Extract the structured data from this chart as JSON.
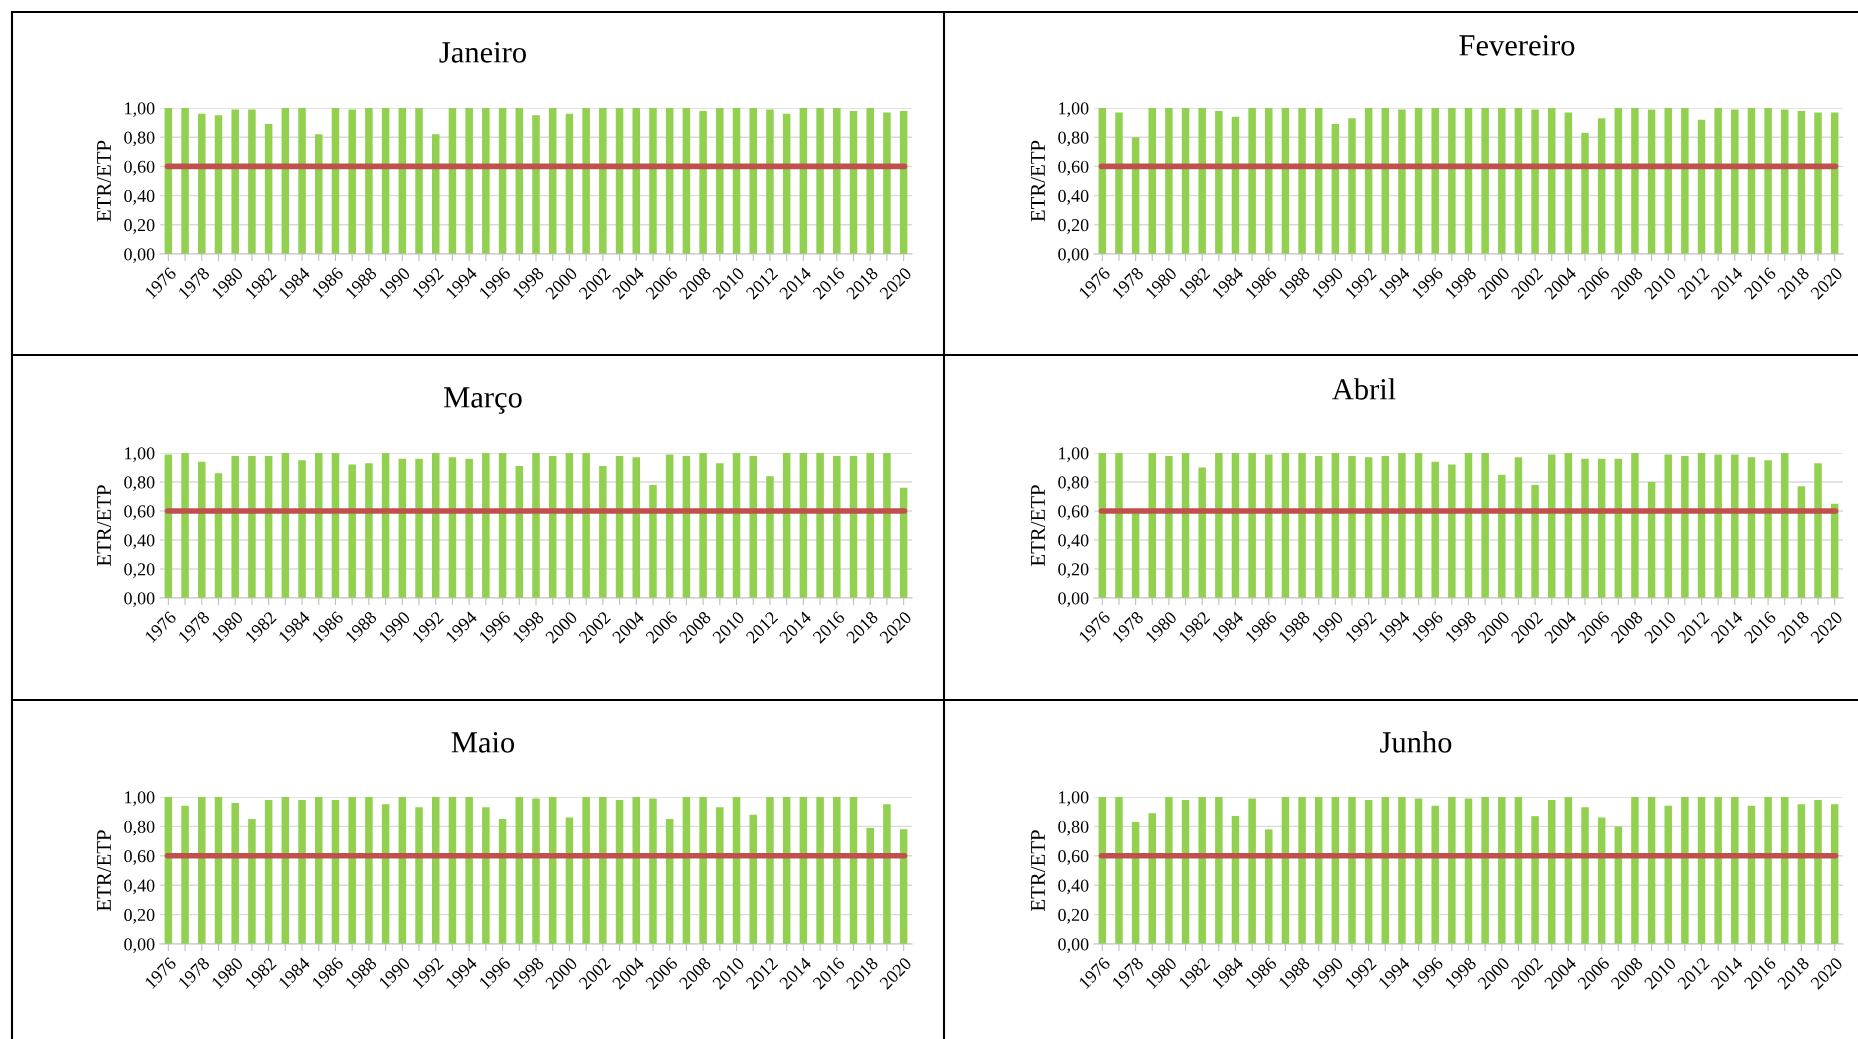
{
  "chart_data": [
    {
      "type": "bar",
      "title": "Janeiro",
      "ylabel": "ETR/ETP",
      "color": "#92d050",
      "grid": "y",
      "ylim": [
        0,
        1
      ],
      "yticks": [
        {
          "value": 0,
          "label": "0,00"
        },
        {
          "value": 0.2,
          "label": "0,20"
        },
        {
          "value": 0.4,
          "label": "0,40"
        },
        {
          "value": 0.6,
          "label": "0,60"
        },
        {
          "value": 0.8,
          "label": "0,80"
        },
        {
          "value": 1,
          "label": "1,00"
        }
      ],
      "ref_lines": [
        {
          "axis": "y",
          "value": 0.6,
          "color": "#c0504d"
        }
      ],
      "categories": [
        "1976",
        null,
        "1978",
        null,
        "1980",
        null,
        "1982",
        null,
        "1984",
        null,
        "1986",
        null,
        "1988",
        null,
        "1990",
        null,
        "1992",
        null,
        "1994",
        null,
        "1996",
        null,
        "1998",
        null,
        "2000",
        null,
        "2002",
        null,
        "2004",
        null,
        "2006",
        null,
        "2008",
        null,
        "2010",
        null,
        "2012",
        null,
        "2014",
        null,
        "2016",
        null,
        "2018",
        null,
        "2020"
      ],
      "values": [
        1.0,
        1.0,
        0.96,
        0.95,
        0.99,
        0.99,
        0.89,
        1.0,
        1.0,
        0.82,
        1.0,
        0.99,
        1.0,
        1.0,
        1.0,
        1.0,
        0.82,
        1.0,
        1.0,
        1.0,
        1.0,
        1.0,
        0.95,
        1.0,
        0.96,
        1.0,
        1.0,
        1.0,
        1.0,
        1.0,
        1.0,
        1.0,
        0.98,
        1.0,
        1.0,
        1.0,
        0.99,
        0.96,
        1.0,
        1.0,
        1.0,
        0.98,
        1.0,
        0.97,
        0.98
      ]
    },
    {
      "type": "bar",
      "title": "Fevereiro",
      "ylabel": "ETR/ETP",
      "color": "#92d050",
      "grid": "y",
      "ylim": [
        0,
        1
      ],
      "yticks": [
        {
          "value": 0,
          "label": "0,00"
        },
        {
          "value": 0.2,
          "label": "0,20"
        },
        {
          "value": 0.4,
          "label": "0,40"
        },
        {
          "value": 0.6,
          "label": "0,60"
        },
        {
          "value": 0.8,
          "label": "0,80"
        },
        {
          "value": 1,
          "label": "1,00"
        }
      ],
      "ref_lines": [
        {
          "axis": "y",
          "value": 0.6,
          "color": "#c0504d"
        }
      ],
      "categories": [
        "1976",
        null,
        "1978",
        null,
        "1980",
        null,
        "1982",
        null,
        "1984",
        null,
        "1986",
        null,
        "1988",
        null,
        "1990",
        null,
        "1992",
        null,
        "1994",
        null,
        "1996",
        null,
        "1998",
        null,
        "2000",
        null,
        "2002",
        null,
        "2004",
        null,
        "2006",
        null,
        "2008",
        null,
        "2010",
        null,
        "2012",
        null,
        "2014",
        null,
        "2016",
        null,
        "2018",
        null,
        "2020"
      ],
      "values": [
        1.0,
        0.97,
        0.8,
        1.0,
        1.0,
        1.0,
        1.0,
        0.98,
        0.94,
        1.0,
        1.0,
        1.0,
        1.0,
        1.0,
        0.89,
        0.93,
        1.0,
        1.0,
        0.99,
        1.0,
        1.0,
        1.0,
        1.0,
        1.0,
        1.0,
        1.0,
        0.99,
        1.0,
        0.97,
        0.83,
        0.93,
        1.0,
        1.0,
        0.99,
        1.0,
        1.0,
        0.92,
        1.0,
        0.99,
        1.0,
        1.0,
        0.99,
        0.98,
        0.97,
        0.97
      ]
    },
    {
      "type": "bar",
      "title": "Março",
      "ylabel": "ETR/ETP",
      "color": "#92d050",
      "grid": "y",
      "ylim": [
        0,
        1
      ],
      "yticks": [
        {
          "value": 0,
          "label": "0,00"
        },
        {
          "value": 0.2,
          "label": "0,20"
        },
        {
          "value": 0.4,
          "label": "0,40"
        },
        {
          "value": 0.6,
          "label": "0,60"
        },
        {
          "value": 0.8,
          "label": "0,80"
        },
        {
          "value": 1,
          "label": "1,00"
        }
      ],
      "ref_lines": [
        {
          "axis": "y",
          "value": 0.6,
          "color": "#c0504d"
        }
      ],
      "categories": [
        "1976",
        null,
        "1978",
        null,
        "1980",
        null,
        "1982",
        null,
        "1984",
        null,
        "1986",
        null,
        "1988",
        null,
        "1990",
        null,
        "1992",
        null,
        "1994",
        null,
        "1996",
        null,
        "1998",
        null,
        "2000",
        null,
        "2002",
        null,
        "2004",
        null,
        "2006",
        null,
        "2008",
        null,
        "2010",
        null,
        "2012",
        null,
        "2014",
        null,
        "2016",
        null,
        "2018",
        null,
        "2020"
      ],
      "values": [
        0.99,
        1.0,
        0.94,
        0.86,
        0.98,
        0.98,
        0.98,
        1.0,
        0.95,
        1.0,
        1.0,
        0.92,
        0.93,
        1.0,
        0.96,
        0.96,
        1.0,
        0.97,
        0.96,
        1.0,
        1.0,
        0.91,
        1.0,
        0.98,
        1.0,
        1.0,
        0.91,
        0.98,
        0.97,
        0.78,
        0.99,
        0.98,
        1.0,
        0.93,
        1.0,
        0.98,
        0.84,
        1.0,
        1.0,
        1.0,
        0.98,
        0.98,
        1.0,
        1.0,
        0.76
      ]
    },
    {
      "type": "bar",
      "title": "Abril",
      "ylabel": "ETR/ETP",
      "color": "#92d050",
      "grid": "y",
      "ylim": [
        0,
        1
      ],
      "yticks": [
        {
          "value": 0,
          "label": "0,00"
        },
        {
          "value": 0.2,
          "label": "0,20"
        },
        {
          "value": 0.4,
          "label": "0,40"
        },
        {
          "value": 0.6,
          "label": "0,60"
        },
        {
          "value": 0.8,
          "label": "0,80"
        },
        {
          "value": 1,
          "label": "1,00"
        }
      ],
      "ref_lines": [
        {
          "axis": "y",
          "value": 0.6,
          "color": "#c0504d"
        }
      ],
      "categories": [
        "1976",
        null,
        "1978",
        null,
        "1980",
        null,
        "1982",
        null,
        "1984",
        null,
        "1986",
        null,
        "1988",
        null,
        "1990",
        null,
        "1992",
        null,
        "1994",
        null,
        "1996",
        null,
        "1998",
        null,
        "2000",
        null,
        "2002",
        null,
        "2004",
        null,
        "2006",
        null,
        "2008",
        null,
        "2010",
        null,
        "2012",
        null,
        "2014",
        null,
        "2016",
        null,
        "2018",
        null,
        "2020"
      ],
      "values": [
        1.0,
        1.0,
        0.59,
        1.0,
        0.98,
        1.0,
        0.9,
        1.0,
        1.0,
        1.0,
        0.99,
        1.0,
        1.0,
        0.98,
        1.0,
        0.98,
        0.97,
        0.98,
        1.0,
        1.0,
        0.94,
        0.92,
        1.0,
        1.0,
        0.85,
        0.97,
        0.78,
        0.99,
        1.0,
        0.96,
        0.96,
        0.96,
        1.0,
        0.8,
        0.99,
        0.98,
        1.0,
        0.99,
        0.99,
        0.97,
        0.95,
        1.0,
        0.77,
        0.93,
        0.65
      ]
    },
    {
      "type": "bar",
      "title": "Maio",
      "ylabel": "ETR/ETP",
      "color": "#92d050",
      "grid": "y",
      "ylim": [
        0,
        1
      ],
      "yticks": [
        {
          "value": 0,
          "label": "0,00"
        },
        {
          "value": 0.2,
          "label": "0,20"
        },
        {
          "value": 0.4,
          "label": "0,40"
        },
        {
          "value": 0.6,
          "label": "0,60"
        },
        {
          "value": 0.8,
          "label": "0,80"
        },
        {
          "value": 1,
          "label": "1,00"
        }
      ],
      "ref_lines": [
        {
          "axis": "y",
          "value": 0.6,
          "color": "#c0504d"
        }
      ],
      "categories": [
        "1976",
        null,
        "1978",
        null,
        "1980",
        null,
        "1982",
        null,
        "1984",
        null,
        "1986",
        null,
        "1988",
        null,
        "1990",
        null,
        "1992",
        null,
        "1994",
        null,
        "1996",
        null,
        "1998",
        null,
        "2000",
        null,
        "2002",
        null,
        "2004",
        null,
        "2006",
        null,
        "2008",
        null,
        "2010",
        null,
        "2012",
        null,
        "2014",
        null,
        "2016",
        null,
        "2018",
        null,
        "2020"
      ],
      "values": [
        1.0,
        0.94,
        1.0,
        1.0,
        0.96,
        0.85,
        0.98,
        1.0,
        0.98,
        1.0,
        0.98,
        1.0,
        1.0,
        0.95,
        1.0,
        0.93,
        1.0,
        1.0,
        1.0,
        0.93,
        0.85,
        1.0,
        0.99,
        1.0,
        0.86,
        1.0,
        1.0,
        0.98,
        1.0,
        0.99,
        0.85,
        1.0,
        1.0,
        0.93,
        1.0,
        0.88,
        1.0,
        1.0,
        1.0,
        1.0,
        1.0,
        1.0,
        0.79,
        0.95,
        0.78
      ]
    },
    {
      "type": "bar",
      "title": "Junho",
      "ylabel": "ETR/ETP",
      "color": "#92d050",
      "grid": "y",
      "ylim": [
        0,
        1
      ],
      "yticks": [
        {
          "value": 0,
          "label": "0,00"
        },
        {
          "value": 0.2,
          "label": "0,20"
        },
        {
          "value": 0.4,
          "label": "0,40"
        },
        {
          "value": 0.6,
          "label": "0,60"
        },
        {
          "value": 0.8,
          "label": "0,80"
        },
        {
          "value": 1,
          "label": "1,00"
        }
      ],
      "ref_lines": [
        {
          "axis": "y",
          "value": 0.6,
          "color": "#c0504d"
        }
      ],
      "categories": [
        "1976",
        null,
        "1978",
        null,
        "1980",
        null,
        "1982",
        null,
        "1984",
        null,
        "1986",
        null,
        "1988",
        null,
        "1990",
        null,
        "1992",
        null,
        "1994",
        null,
        "1996",
        null,
        "1998",
        null,
        "2000",
        null,
        "2002",
        null,
        "2004",
        null,
        "2006",
        null,
        "2008",
        null,
        "2010",
        null,
        "2012",
        null,
        "2014",
        null,
        "2016",
        null,
        "2018",
        null,
        "2020"
      ],
      "values": [
        1.0,
        1.0,
        0.83,
        0.89,
        1.0,
        0.98,
        1.0,
        1.0,
        0.87,
        0.99,
        0.78,
        1.0,
        1.0,
        1.0,
        1.0,
        1.0,
        0.98,
        1.0,
        1.0,
        0.99,
        0.94,
        1.0,
        0.99,
        1.0,
        1.0,
        1.0,
        0.87,
        0.98,
        1.0,
        0.93,
        0.86,
        0.8,
        1.0,
        1.0,
        0.94,
        1.0,
        1.0,
        1.0,
        1.0,
        0.94,
        1.0,
        1.0,
        0.95,
        0.98,
        0.95
      ]
    }
  ]
}
